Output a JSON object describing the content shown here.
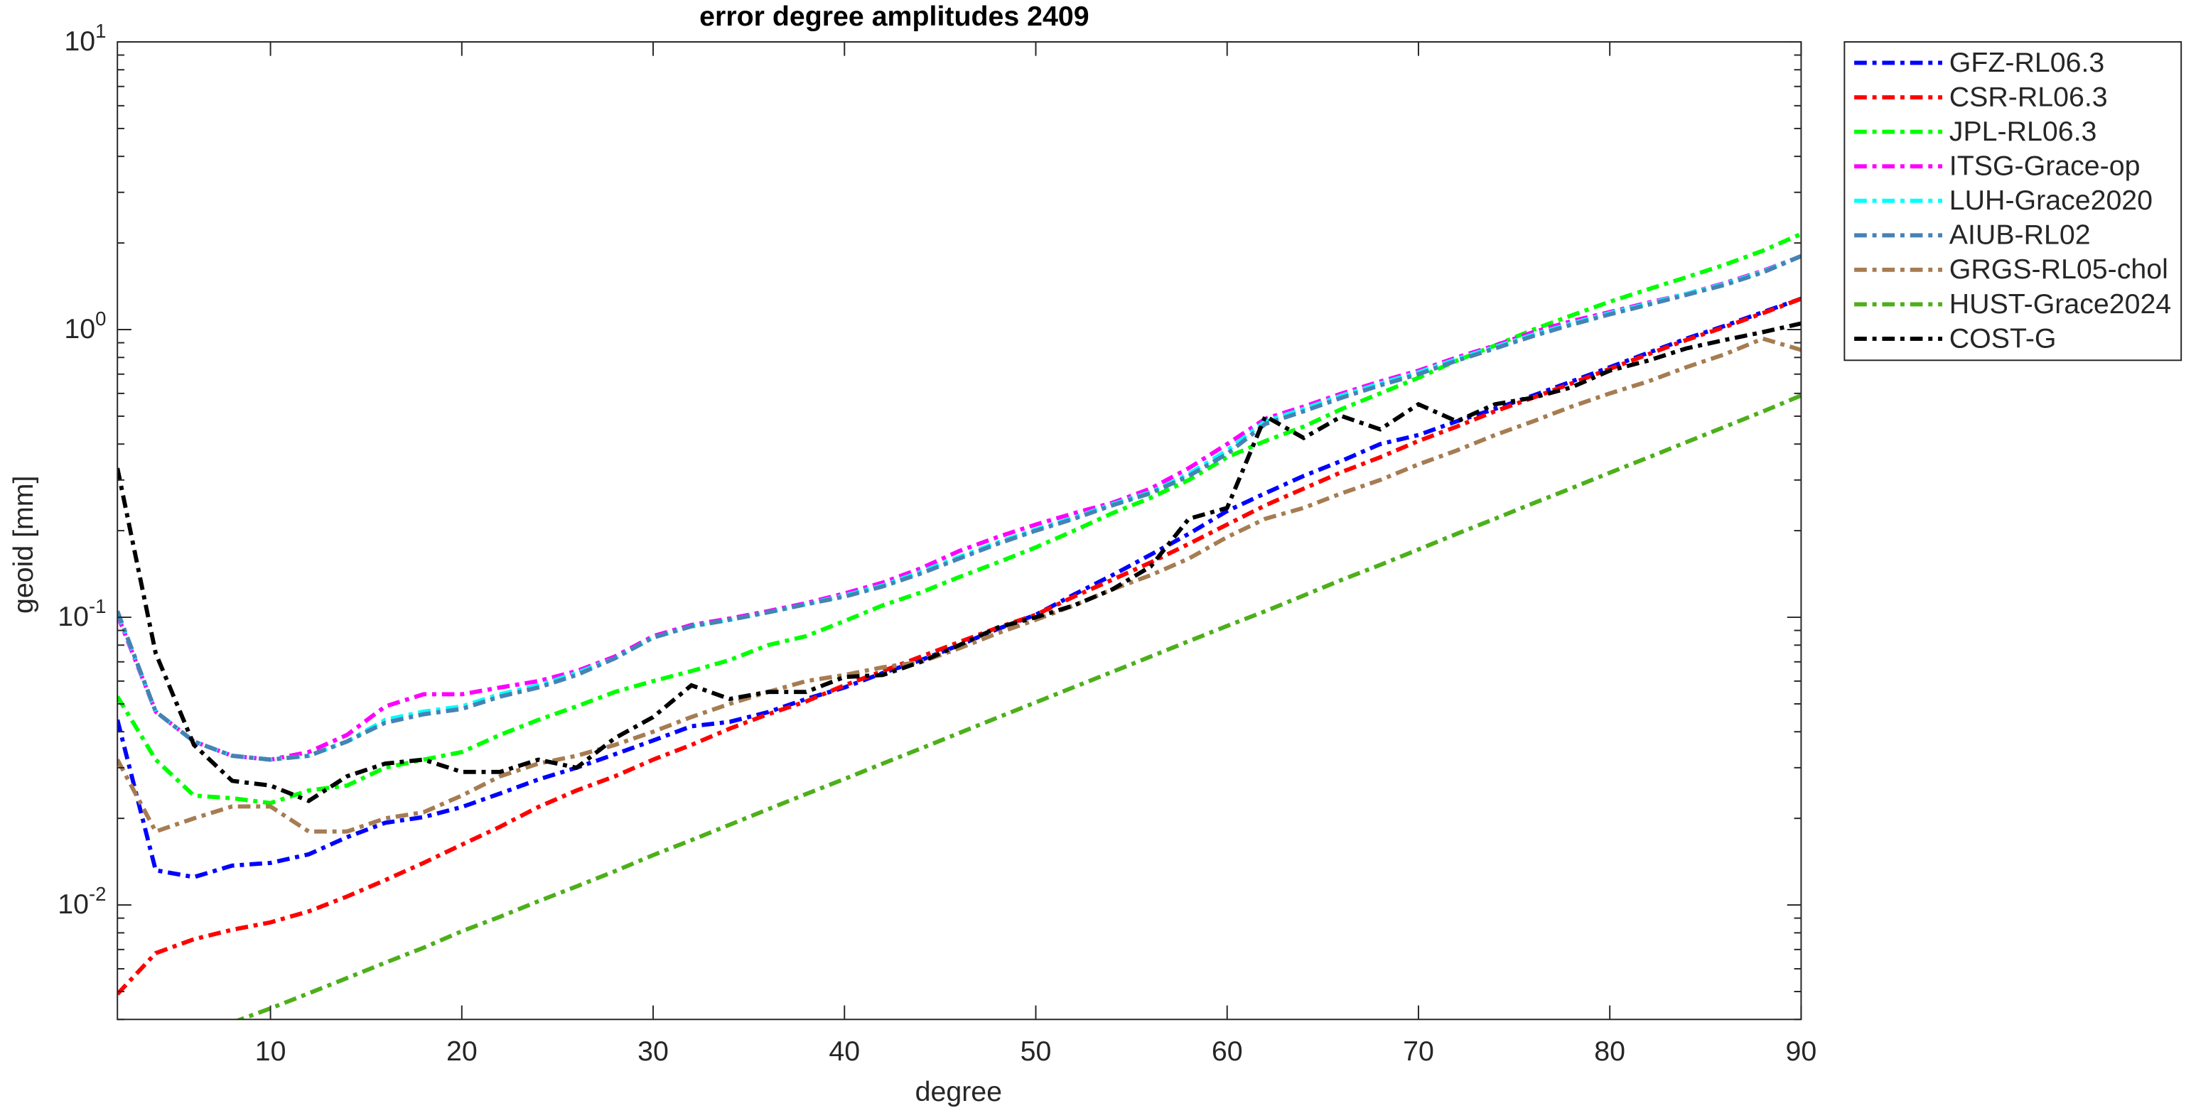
{
  "chart_data": {
    "type": "line",
    "title": "error degree amplitudes 2409",
    "x_label": "degree",
    "y_label": "geoid [mm]",
    "yscale": "log",
    "grid": false,
    "legend": "outside-right",
    "xlim": [
      2,
      90
    ],
    "xticks": [
      10,
      20,
      30,
      40,
      50,
      60,
      70,
      80,
      90
    ],
    "ylim": [
      0.004,
      10
    ],
    "yticks": [
      {
        "value": 0.01,
        "label": "10^{-2}"
      },
      {
        "value": 0.1,
        "label": "10^{-1}"
      },
      {
        "value": 1,
        "label": "10^{0}"
      },
      {
        "value": 10,
        "label": "10^{1}"
      }
    ],
    "x": [
      2,
      4,
      6,
      8,
      10,
      12,
      14,
      16,
      18,
      20,
      22,
      24,
      26,
      28,
      30,
      32,
      34,
      36,
      38,
      40,
      42,
      44,
      46,
      48,
      50,
      52,
      54,
      56,
      58,
      60,
      62,
      64,
      66,
      68,
      70,
      72,
      74,
      76,
      78,
      80,
      82,
      84,
      86,
      88,
      90
    ],
    "series": [
      {
        "name": "GFZ-RL06.3",
        "color": "#0000ff",
        "values": [
          0.044,
          0.0132,
          0.0125,
          0.0137,
          0.014,
          0.015,
          0.0172,
          0.0193,
          0.0202,
          0.0219,
          0.0244,
          0.0273,
          0.03,
          0.0334,
          0.0373,
          0.0418,
          0.0433,
          0.0468,
          0.052,
          0.057,
          0.064,
          0.071,
          0.08,
          0.091,
          0.102,
          0.12,
          0.14,
          0.165,
          0.195,
          0.234,
          0.27,
          0.31,
          0.35,
          0.4,
          0.43,
          0.48,
          0.53,
          0.59,
          0.66,
          0.74,
          0.83,
          0.93,
          1.03,
          1.15,
          1.28
        ]
      },
      {
        "name": "CSR-RL06.3",
        "color": "#ff0000",
        "values": [
          0.0049,
          0.0068,
          0.0076,
          0.0082,
          0.0087,
          0.0095,
          0.0107,
          0.0122,
          0.014,
          0.0162,
          0.0187,
          0.0219,
          0.025,
          0.028,
          0.032,
          0.036,
          0.041,
          0.046,
          0.051,
          0.058,
          0.065,
          0.073,
          0.082,
          0.092,
          0.102,
          0.118,
          0.135,
          0.155,
          0.18,
          0.21,
          0.245,
          0.28,
          0.32,
          0.36,
          0.41,
          0.46,
          0.52,
          0.58,
          0.65,
          0.73,
          0.82,
          0.92,
          1.02,
          1.14,
          1.28
        ]
      },
      {
        "name": "JPL-RL06.3",
        "color": "#00ff00",
        "values": [
          0.053,
          0.032,
          0.024,
          0.0235,
          0.0226,
          0.025,
          0.026,
          0.03,
          0.032,
          0.034,
          0.039,
          0.044,
          0.049,
          0.055,
          0.06,
          0.065,
          0.071,
          0.08,
          0.086,
          0.097,
          0.11,
          0.122,
          0.138,
          0.155,
          0.175,
          0.2,
          0.23,
          0.26,
          0.3,
          0.36,
          0.41,
          0.46,
          0.53,
          0.6,
          0.68,
          0.78,
          0.88,
          1.0,
          1.12,
          1.25,
          1.38,
          1.52,
          1.68,
          1.88,
          2.15
        ]
      },
      {
        "name": "ITSG-Grace-op",
        "color": "#ff00ff",
        "values": [
          0.102,
          0.047,
          0.037,
          0.033,
          0.032,
          0.034,
          0.039,
          0.049,
          0.054,
          0.054,
          0.057,
          0.06,
          0.065,
          0.073,
          0.086,
          0.094,
          0.099,
          0.105,
          0.112,
          0.121,
          0.132,
          0.148,
          0.17,
          0.19,
          0.21,
          0.23,
          0.25,
          0.28,
          0.33,
          0.4,
          0.49,
          0.54,
          0.6,
          0.66,
          0.72,
          0.8,
          0.88,
          0.98,
          1.07,
          1.15,
          1.24,
          1.33,
          1.45,
          1.6,
          1.8
        ]
      },
      {
        "name": "LUH-Grace2020",
        "color": "#00ffff",
        "values": [
          0.104,
          0.047,
          0.037,
          0.033,
          0.032,
          0.033,
          0.037,
          0.044,
          0.047,
          0.049,
          0.054,
          0.058,
          0.064,
          0.072,
          0.085,
          0.093,
          0.098,
          0.104,
          0.111,
          0.119,
          0.129,
          0.144,
          0.162,
          0.182,
          0.202,
          0.222,
          0.247,
          0.272,
          0.315,
          0.38,
          0.48,
          0.53,
          0.59,
          0.65,
          0.71,
          0.79,
          0.87,
          0.96,
          1.05,
          1.14,
          1.23,
          1.33,
          1.44,
          1.59,
          1.8
        ]
      },
      {
        "name": "AIUB-RL02",
        "color": "#4682b4",
        "values": [
          0.105,
          0.047,
          0.037,
          0.033,
          0.032,
          0.033,
          0.037,
          0.043,
          0.046,
          0.048,
          0.053,
          0.057,
          0.063,
          0.072,
          0.085,
          0.093,
          0.098,
          0.104,
          0.111,
          0.118,
          0.128,
          0.142,
          0.16,
          0.18,
          0.2,
          0.22,
          0.245,
          0.27,
          0.31,
          0.37,
          0.47,
          0.52,
          0.58,
          0.64,
          0.7,
          0.78,
          0.86,
          0.95,
          1.04,
          1.13,
          1.22,
          1.32,
          1.43,
          1.58,
          1.8
        ]
      },
      {
        "name": "GRGS-RL05-chol",
        "color": "#a67c52",
        "values": [
          0.032,
          0.018,
          0.02,
          0.022,
          0.022,
          0.018,
          0.018,
          0.02,
          0.021,
          0.024,
          0.028,
          0.031,
          0.033,
          0.036,
          0.04,
          0.045,
          0.05,
          0.055,
          0.06,
          0.063,
          0.067,
          0.07,
          0.078,
          0.088,
          0.098,
          0.11,
          0.125,
          0.14,
          0.16,
          0.19,
          0.22,
          0.24,
          0.27,
          0.3,
          0.34,
          0.38,
          0.43,
          0.48,
          0.54,
          0.6,
          0.66,
          0.74,
          0.82,
          0.93,
          0.85
        ]
      },
      {
        "name": "HUST-Grace2024",
        "color": "#4daf1a",
        "values": [
          null,
          null,
          null,
          0.0039,
          0.00437,
          0.00493,
          0.00557,
          0.0063,
          0.0071,
          0.0081,
          0.0091,
          0.0103,
          0.0116,
          0.0131,
          0.0149,
          0.0168,
          0.019,
          0.0215,
          0.0243,
          0.0274,
          0.031,
          0.035,
          0.0396,
          0.0448,
          0.0506,
          0.0572,
          0.0646,
          0.073,
          0.0826,
          0.0933,
          0.105,
          0.119,
          0.135,
          0.152,
          0.172,
          0.195,
          0.22,
          0.249,
          0.281,
          0.318,
          0.359,
          0.406,
          0.459,
          0.519,
          0.59
        ]
      },
      {
        "name": "COST-G",
        "color": "#000000",
        "values": [
          0.33,
          0.075,
          0.036,
          0.027,
          0.026,
          0.023,
          0.028,
          0.031,
          0.032,
          0.029,
          0.029,
          0.032,
          0.03,
          0.038,
          0.045,
          0.058,
          0.052,
          0.055,
          0.055,
          0.062,
          0.063,
          0.07,
          0.08,
          0.092,
          0.1,
          0.11,
          0.125,
          0.15,
          0.22,
          0.24,
          0.5,
          0.42,
          0.5,
          0.45,
          0.55,
          0.48,
          0.55,
          0.58,
          0.63,
          0.72,
          0.78,
          0.86,
          0.92,
          0.98,
          1.05
        ]
      }
    ]
  }
}
